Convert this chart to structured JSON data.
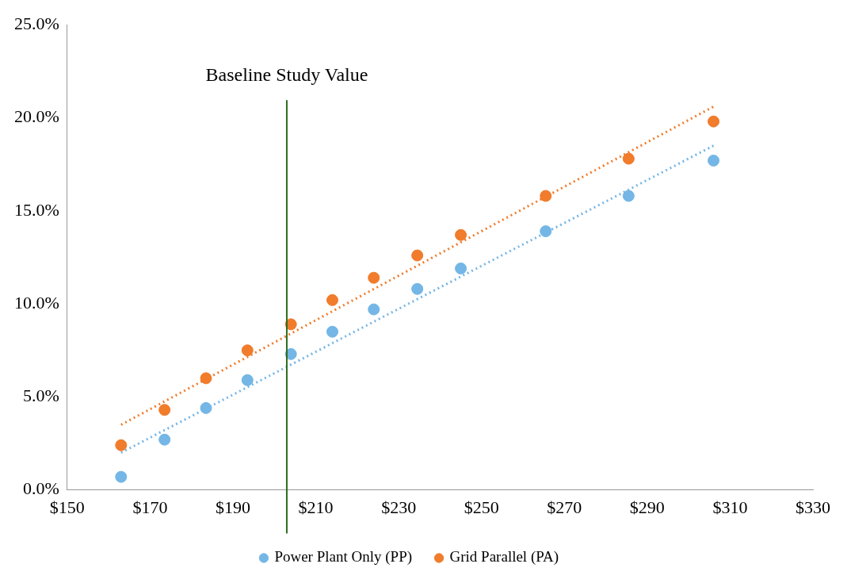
{
  "chart_data": {
    "type": "scatter",
    "marker": "circle",
    "legend": "bottom",
    "grid": false,
    "xlim": [
      150,
      330
    ],
    "xticks": [
      {
        "value": 150,
        "label": "$150"
      },
      {
        "value": 170,
        "label": "$170"
      },
      {
        "value": 190,
        "label": "$190"
      },
      {
        "value": 210,
        "label": "$210"
      },
      {
        "value": 230,
        "label": "$230"
      },
      {
        "value": 250,
        "label": "$250"
      },
      {
        "value": 270,
        "label": "$270"
      },
      {
        "value": 290,
        "label": "$290"
      },
      {
        "value": 310,
        "label": "$310"
      },
      {
        "value": 330,
        "label": "$330"
      }
    ],
    "ylim": [
      0,
      25
    ],
    "yticks": [
      {
        "value": 0,
        "label": "0.0%"
      },
      {
        "value": 5,
        "label": "5.0%"
      },
      {
        "value": 10,
        "label": "10.0%"
      },
      {
        "value": 15,
        "label": "15.0%"
      },
      {
        "value": 20,
        "label": "20.0%"
      },
      {
        "value": 25,
        "label": "25.0%"
      }
    ],
    "series": [
      {
        "name": "Power Plant Only (PP)",
        "color": "#74b6e6",
        "x": [
          163,
          173.5,
          183.5,
          193.5,
          204,
          214,
          224,
          234.5,
          245,
          265.5,
          285.5,
          306
        ],
        "values": [
          0.7,
          2.7,
          4.4,
          5.9,
          7.3,
          8.5,
          9.7,
          10.8,
          11.9,
          13.9,
          15.8,
          17.7
        ]
      },
      {
        "name": "Grid Parallel (PA)",
        "color": "#f07c2c",
        "x": [
          163,
          173.5,
          183.5,
          193.5,
          204,
          214,
          224,
          234.5,
          245,
          265.5,
          285.5,
          306
        ],
        "values": [
          2.4,
          4.3,
          6.0,
          7.5,
          8.9,
          10.2,
          11.4,
          12.6,
          13.7,
          15.8,
          17.8,
          19.8
        ]
      },
      {
        "type": "line",
        "line_style": "dotted",
        "marker": "none",
        "color": "#74b6e6",
        "x": [
          163,
          306
        ],
        "values": [
          2.0,
          18.5
        ]
      },
      {
        "type": "line",
        "line_style": "dotted",
        "marker": "none",
        "color": "#f07c2c",
        "x": [
          163,
          306
        ],
        "values": [
          3.5,
          20.6
        ]
      }
    ],
    "ref_lines": [
      {
        "axis": "x",
        "value": 203,
        "label": "Baseline Study Value",
        "color": "#2e6b1e",
        "line_style": "solid"
      }
    ]
  }
}
